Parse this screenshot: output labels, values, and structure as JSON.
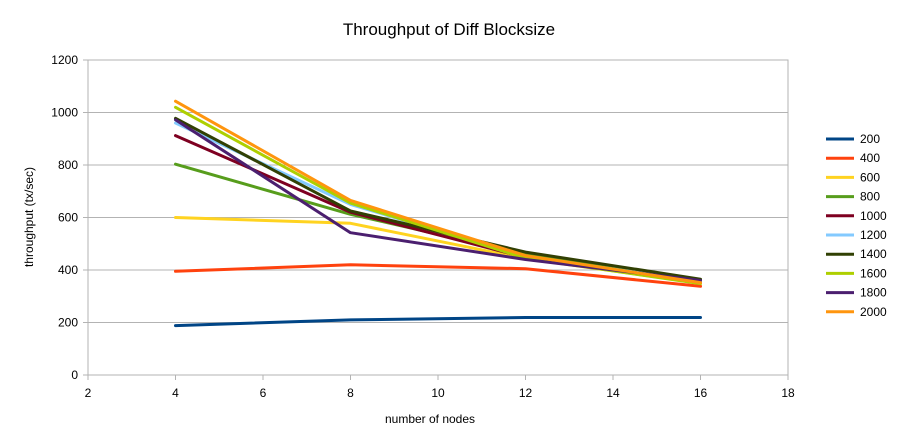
{
  "chart_data": {
    "type": "line",
    "title": "Throughput of Diff Blocksize",
    "xlabel": "number of nodes",
    "ylabel": "throughput (tx/sec)",
    "xlim": [
      2,
      18
    ],
    "ylim": [
      0,
      1200
    ],
    "xticks": [
      2,
      4,
      6,
      8,
      10,
      12,
      14,
      16,
      18
    ],
    "yticks": [
      0,
      200,
      400,
      600,
      800,
      1000,
      1200
    ],
    "grid": "horizontal",
    "legend_position": "right",
    "x": [
      4,
      8,
      12,
      16
    ],
    "series": [
      {
        "name": "200",
        "color": "#004586",
        "values": [
          188,
          210,
          219,
          219
        ]
      },
      {
        "name": "400",
        "color": "#ff420e",
        "values": [
          395,
          420,
          405,
          338
        ]
      },
      {
        "name": "600",
        "color": "#ffd320",
        "values": [
          600,
          578,
          443,
          350
        ]
      },
      {
        "name": "800",
        "color": "#579d1c",
        "values": [
          803,
          612,
          460,
          362
        ]
      },
      {
        "name": "1000",
        "color": "#7e0021",
        "values": [
          912,
          620,
          448,
          355
        ]
      },
      {
        "name": "1200",
        "color": "#83caff",
        "values": [
          960,
          650,
          450,
          357
        ]
      },
      {
        "name": "1400",
        "color": "#314004",
        "values": [
          978,
          625,
          468,
          365
        ]
      },
      {
        "name": "1600",
        "color": "#aecf00",
        "values": [
          1020,
          655,
          445,
          348
        ]
      },
      {
        "name": "1800",
        "color": "#4b1f6f",
        "values": [
          972,
          542,
          440,
          360
        ]
      },
      {
        "name": "2000",
        "color": "#ff950e",
        "values": [
          1043,
          665,
          455,
          352
        ]
      }
    ]
  }
}
